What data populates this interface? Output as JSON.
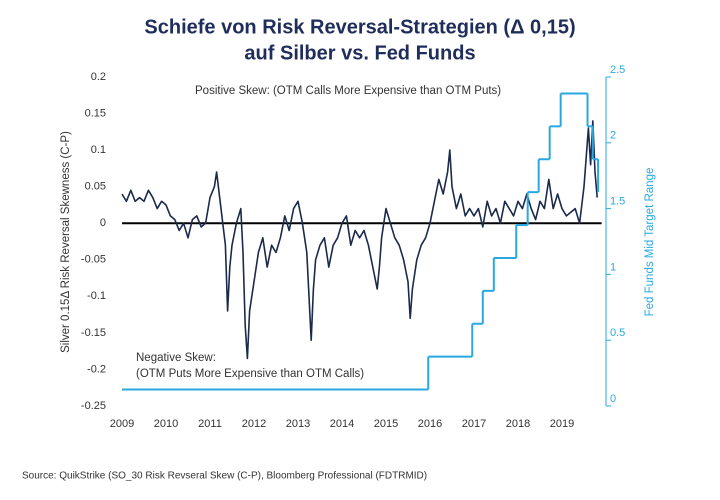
{
  "chart_data": {
    "type": "line",
    "title": "Schiefe von Risk Reversal-Strategien (Δ 0,15)",
    "subtitle": "auf Silber vs. Fed Funds",
    "ylabel": "Silver 0.15Δ Risk Reversal Skewness  (C-P)",
    "y2label": "Fed Funds Mid Target Range",
    "source": "Source: QuikStrike (SO_30 Risk Revseral Skew (C-P), Bloomberg Professional (FDTRMID)",
    "annotations": [
      "Positive Skew: (OTM Calls More Expensive than OTM Puts)",
      "Negative Skew:",
      "(OTM Puts More Expensive than OTM Calls)"
    ],
    "xlim": [
      2009,
      2019.9
    ],
    "xticks": [
      2009,
      2010,
      2011,
      2012,
      2013,
      2014,
      2015,
      2016,
      2017,
      2018,
      2019
    ],
    "ylim": [
      -0.25,
      0.2
    ],
    "yticks": [
      -0.25,
      -0.2,
      -0.15,
      -0.1,
      -0.05,
      0,
      0.05,
      0.1,
      0.15,
      0.2
    ],
    "y2lim": [
      0,
      2.5
    ],
    "y2ticks": [
      0,
      0.5,
      1,
      1.5,
      2,
      2.5
    ],
    "series": [
      {
        "name": "Silver 0.15Δ Risk Reversal Skewness",
        "color": "#1b2a4a",
        "x": [
          2009.0,
          2009.1,
          2009.2,
          2009.3,
          2009.4,
          2009.5,
          2009.6,
          2009.7,
          2009.8,
          2009.9,
          2010.0,
          2010.1,
          2010.2,
          2010.3,
          2010.4,
          2010.5,
          2010.6,
          2010.7,
          2010.8,
          2010.9,
          2011.0,
          2011.1,
          2011.15,
          2011.25,
          2011.35,
          2011.4,
          2011.45,
          2011.5,
          2011.6,
          2011.7,
          2011.75,
          2011.8,
          2011.85,
          2011.9,
          2012.0,
          2012.1,
          2012.2,
          2012.3,
          2012.4,
          2012.5,
          2012.6,
          2012.7,
          2012.8,
          2012.9,
          2013.0,
          2013.1,
          2013.2,
          2013.3,
          2013.35,
          2013.4,
          2013.5,
          2013.6,
          2013.7,
          2013.8,
          2013.9,
          2014.0,
          2014.1,
          2014.2,
          2014.3,
          2014.4,
          2014.5,
          2014.6,
          2014.7,
          2014.8,
          2014.85,
          2014.9,
          2015.0,
          2015.1,
          2015.2,
          2015.3,
          2015.4,
          2015.5,
          2015.55,
          2015.6,
          2015.7,
          2015.8,
          2015.9,
          2016.0,
          2016.1,
          2016.2,
          2016.3,
          2016.4,
          2016.45,
          2016.5,
          2016.6,
          2016.7,
          2016.8,
          2016.9,
          2017.0,
          2017.1,
          2017.2,
          2017.3,
          2017.4,
          2017.5,
          2017.6,
          2017.7,
          2017.8,
          2017.9,
          2018.0,
          2018.1,
          2018.2,
          2018.3,
          2018.4,
          2018.5,
          2018.6,
          2018.7,
          2018.8,
          2018.9,
          2019.0,
          2019.1,
          2019.2,
          2019.3,
          2019.4,
          2019.5,
          2019.55,
          2019.6,
          2019.65,
          2019.7,
          2019.75,
          2019.8
        ],
        "values": [
          0.04,
          0.03,
          0.045,
          0.03,
          0.035,
          0.03,
          0.045,
          0.035,
          0.02,
          0.03,
          0.025,
          0.01,
          0.005,
          -0.01,
          0.0,
          -0.02,
          0.005,
          0.01,
          -0.005,
          0.0,
          0.035,
          0.05,
          0.07,
          0.02,
          -0.03,
          -0.12,
          -0.06,
          -0.03,
          0.0,
          0.02,
          -0.04,
          -0.14,
          -0.185,
          -0.12,
          -0.08,
          -0.04,
          -0.02,
          -0.06,
          -0.03,
          -0.04,
          -0.02,
          0.01,
          -0.01,
          0.02,
          0.03,
          0.0,
          -0.04,
          -0.16,
          -0.09,
          -0.05,
          -0.03,
          -0.02,
          -0.06,
          -0.03,
          -0.02,
          0.0,
          0.01,
          -0.03,
          -0.01,
          -0.02,
          -0.01,
          -0.03,
          -0.06,
          -0.09,
          -0.06,
          -0.02,
          0.02,
          0.0,
          -0.02,
          -0.03,
          -0.05,
          -0.08,
          -0.13,
          -0.09,
          -0.05,
          -0.03,
          -0.02,
          0.0,
          0.03,
          0.06,
          0.04,
          0.07,
          0.1,
          0.05,
          0.02,
          0.04,
          0.01,
          0.02,
          0.01,
          0.02,
          -0.005,
          0.03,
          0.01,
          0.02,
          0.0,
          0.03,
          0.02,
          0.01,
          0.03,
          0.02,
          0.04,
          0.02,
          0.005,
          0.03,
          0.02,
          0.06,
          0.02,
          0.04,
          0.02,
          0.01,
          0.015,
          0.02,
          0.0,
          0.05,
          0.09,
          0.13,
          0.08,
          0.14,
          0.07,
          0.035
        ]
      },
      {
        "name": "Fed Funds Mid Target Range",
        "color": "#29a8e0",
        "axis": "y2",
        "step": "post",
        "x": [
          2009,
          2015.96,
          2016.96,
          2017.2,
          2017.45,
          2017.96,
          2018.22,
          2018.47,
          2018.72,
          2018.97,
          2019.58,
          2019.7,
          2019.82
        ],
        "values": [
          0.125,
          0.375,
          0.625,
          0.875,
          1.125,
          1.375,
          1.625,
          1.875,
          2.125,
          2.375,
          2.125,
          1.875,
          1.625
        ]
      }
    ]
  }
}
